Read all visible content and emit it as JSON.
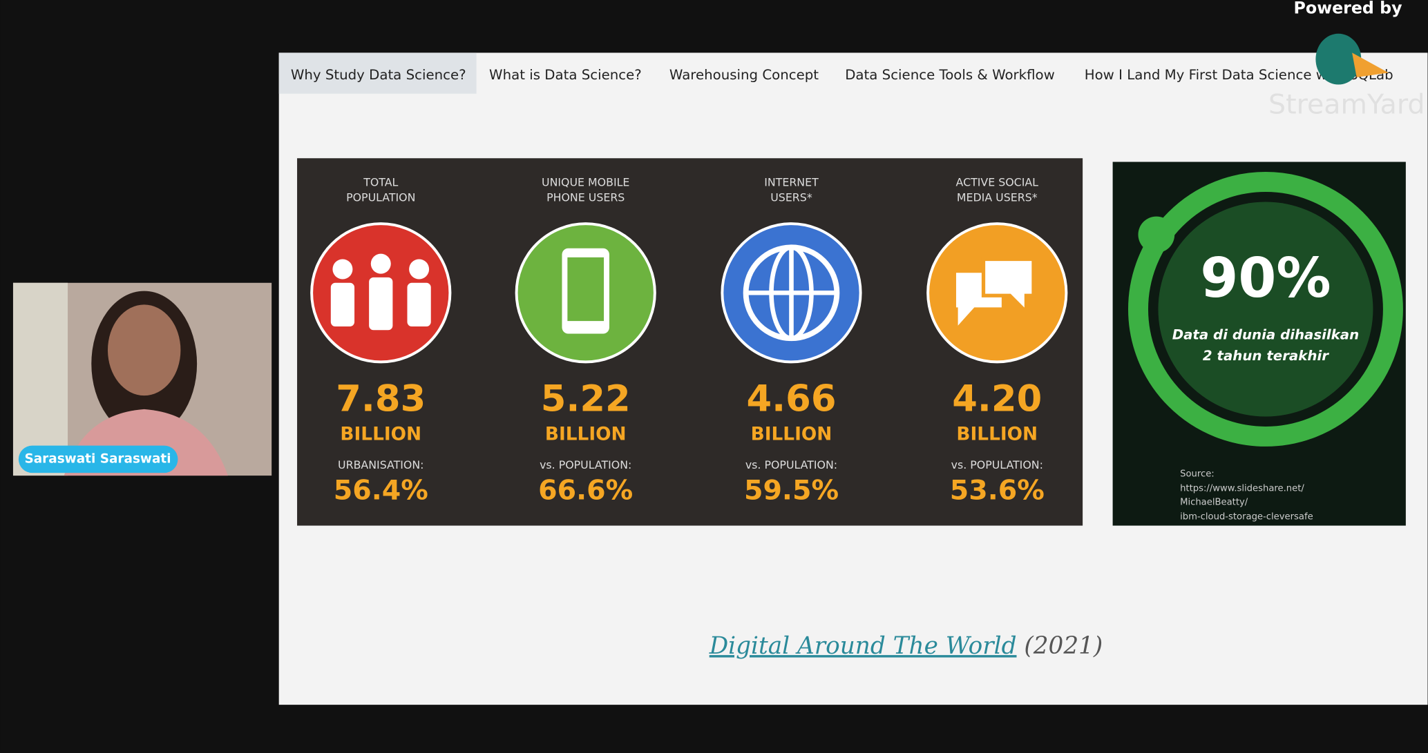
{
  "tabs": [
    "Why Study Data Science?",
    "What is Data Science?",
    "Warehousing Concept",
    "Data Science Tools & Workflow",
    "How I Land My First Data Science with SQLab"
  ],
  "stats": [
    {
      "label": [
        "TOTAL",
        "POPULATION"
      ],
      "value": "7.83",
      "unit": "BILLION",
      "sub_label": "URBANISATION:",
      "percent": "56.4%"
    },
    {
      "label": [
        "UNIQUE MOBILE",
        "PHONE USERS"
      ],
      "value": "5.22",
      "unit": "BILLION",
      "sub_label": "vs. POPULATION:",
      "percent": "66.6%"
    },
    {
      "label": [
        "INTERNET",
        "USERS*"
      ],
      "value": "4.66",
      "unit": "BILLION",
      "sub_label": "vs. POPULATION:",
      "percent": "59.5%"
    },
    {
      "label": [
        "ACTIVE SOCIAL",
        "MEDIA USERS*"
      ],
      "value": "4.20",
      "unit": "BILLION",
      "sub_label": "vs. POPULATION:",
      "percent": "53.6%"
    }
  ],
  "side_panel": {
    "headline": "90%",
    "caption": [
      "Data di dunia dihasilkan",
      "2 tahun terakhir"
    ],
    "source": [
      "Source:",
      "https://www.slideshare.net/",
      "MichaelBeatty/",
      "ibm-cloud-storage-cleversafe"
    ]
  },
  "caption": {
    "link": "Digital Around The World",
    "year": "(2021)"
  },
  "presenter": {
    "name": "Saraswati Saraswati"
  },
  "branding": {
    "powered_by": "Powered by",
    "brand": "StreamYard"
  }
}
